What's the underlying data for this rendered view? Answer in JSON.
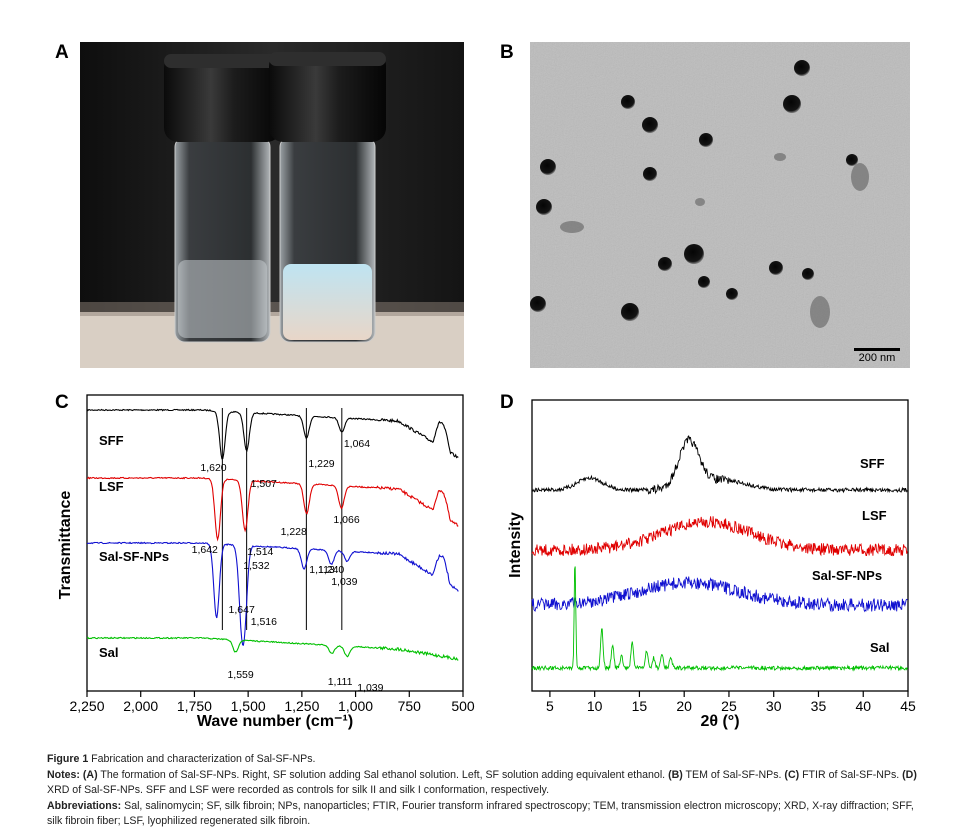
{
  "panels": {
    "a_label": "A",
    "b_label": "B",
    "c_label": "C",
    "d_label": "D"
  },
  "panel_b": {
    "scale_bar": "200 nm"
  },
  "chart_data": [
    {
      "type": "line",
      "panel": "C",
      "xlabel": "Wave number (cm⁻¹)",
      "ylabel": "Transmittance",
      "xlim": [
        2250,
        500
      ],
      "x_reversed": true,
      "x_ticks": [
        "2,250",
        "2,000",
        "1,750",
        "1,500",
        "1,250",
        "1,000",
        "750",
        "500"
      ],
      "grid": false,
      "series": [
        {
          "name": "SFF",
          "color": "#000000",
          "peaks": [
            1620,
            1507,
            1229,
            1064
          ]
        },
        {
          "name": "LSF",
          "color": "#e00000",
          "peaks": [
            1642,
            1514,
            1228,
            1066
          ]
        },
        {
          "name": "Sal-SF-NPs",
          "color": "#1010d0",
          "peaks": [
            1647,
            1532,
            1516,
            1240,
            1113,
            1039
          ]
        },
        {
          "name": "Sal",
          "color": "#00c000",
          "peaks": [
            1559,
            1111,
            1039
          ]
        }
      ],
      "vertical_lines": [
        1620,
        1507,
        1229,
        1064
      ],
      "annotations": [
        "1,620",
        "1,507",
        "1,229",
        "1,064",
        "1,642",
        "1,514",
        "1,228",
        "1,066",
        "1,647",
        "1,532",
        "1,516",
        "1,240",
        "1,113",
        "1,039",
        "1,559",
        "1,111",
        "1,039"
      ]
    },
    {
      "type": "line",
      "panel": "D",
      "xlabel": "2θ (°)",
      "ylabel": "Intensity",
      "xlim": [
        3,
        45
      ],
      "x_ticks": [
        "5",
        "10",
        "15",
        "20",
        "25",
        "30",
        "35",
        "40",
        "45"
      ],
      "grid": false,
      "series": [
        {
          "name": "SFF",
          "color": "#000000",
          "peaks": [
            20.5
          ]
        },
        {
          "name": "LSF",
          "color": "#e00000",
          "peaks": [
            22.5
          ]
        },
        {
          "name": "Sal-SF-NPs",
          "color": "#1010d0",
          "peaks": [
            21
          ]
        },
        {
          "name": "Sal",
          "color": "#00c000",
          "peaks": [
            7.8,
            10.8,
            12,
            14.2,
            15.8,
            17.5,
            18.5
          ]
        }
      ]
    }
  ],
  "caption": {
    "figure_label": "Figure 1",
    "title": " Fabrication and characterization of Sal-SF-NPs.",
    "notes_label": "Notes: ",
    "notes_a_tag": "(A)",
    "notes_a": " The formation of Sal-SF-NPs. Right, SF solution adding Sal ethanol solution. Left, SF solution adding equivalent ethanol. ",
    "notes_b_tag": "(B)",
    "notes_b": " TEM of Sal-SF-NPs. ",
    "notes_c_tag": "(C)",
    "notes_c": " FTIR of Sal-SF-NPs. ",
    "notes_d_tag": "(D)",
    "notes_d": " XRD of Sal-SF-NPs. SFF and LSF were recorded as controls for silk II and silk I conformation, respectively.",
    "abbrev_label": "Abbreviations: ",
    "abbrev": "Sal, salinomycin; SF, silk fibroin; NPs, nanoparticles; FTIR, Fourier transform infrared spectroscopy; TEM, transmission electron microscopy; XRD, X-ray diffraction; SFF, silk fibroin fiber; LSF, lyophilized regenerated silk fibroin."
  }
}
